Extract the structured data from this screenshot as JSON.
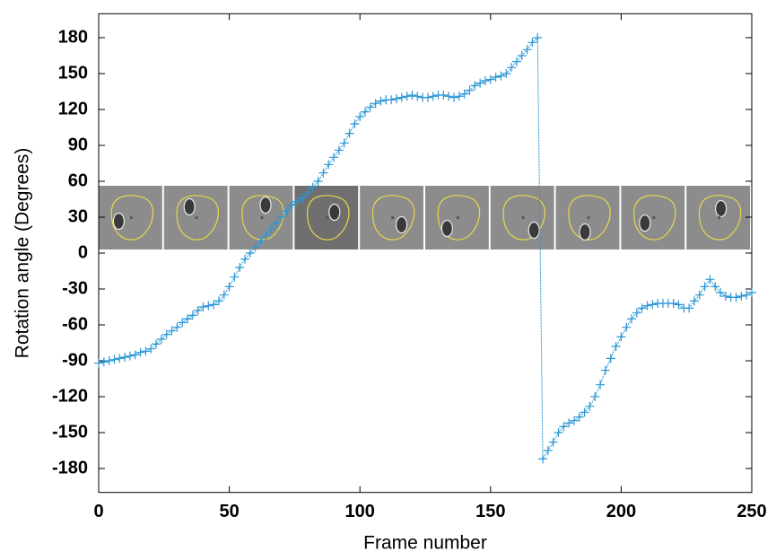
{
  "chart_data": {
    "type": "line",
    "xlabel": "Frame number",
    "ylabel": "Rotation angle (Degrees)",
    "color": "#2b96d6",
    "marker": "+",
    "xlim": [
      0,
      250
    ],
    "xticks": [
      0,
      50,
      100,
      150,
      200,
      250
    ],
    "ylim": [
      -200,
      200
    ],
    "yticks": [
      -180,
      -150,
      -120,
      -90,
      -60,
      -30,
      0,
      30,
      60,
      90,
      120,
      150,
      180
    ],
    "x": [
      0,
      2,
      4,
      6,
      8,
      10,
      12,
      14,
      16,
      18,
      20,
      22,
      24,
      26,
      28,
      30,
      32,
      34,
      36,
      38,
      40,
      42,
      44,
      46,
      48,
      50,
      52,
      54,
      56,
      58,
      60,
      62,
      64,
      66,
      68,
      70,
      72,
      74,
      76,
      78,
      80,
      82,
      84,
      86,
      88,
      90,
      92,
      94,
      96,
      98,
      100,
      102,
      104,
      106,
      108,
      110,
      112,
      114,
      116,
      118,
      120,
      122,
      124,
      126,
      128,
      130,
      132,
      134,
      136,
      138,
      140,
      142,
      144,
      146,
      148,
      150,
      152,
      154,
      156,
      158,
      160,
      162,
      164,
      166,
      168,
      170,
      172,
      174,
      176,
      178,
      180,
      182,
      184,
      186,
      188,
      190,
      192,
      194,
      196,
      198,
      200,
      202,
      204,
      206,
      208,
      210,
      212,
      214,
      216,
      218,
      220,
      222,
      224,
      226,
      228,
      230,
      232,
      234,
      236,
      238,
      240,
      242,
      244,
      246,
      248,
      250
    ],
    "values": [
      -92,
      -91,
      -90,
      -89,
      -88,
      -87,
      -86,
      -85,
      -83,
      -82,
      -80,
      -76,
      -72,
      -68,
      -65,
      -62,
      -58,
      -55,
      -52,
      -48,
      -45,
      -44,
      -43,
      -40,
      -35,
      -28,
      -20,
      -12,
      -5,
      0,
      5,
      10,
      15,
      20,
      25,
      30,
      35,
      40,
      43,
      46,
      50,
      55,
      60,
      67,
      74,
      80,
      86,
      92,
      100,
      108,
      114,
      118,
      122,
      125,
      127,
      128,
      128,
      129,
      130,
      131,
      132,
      131,
      130,
      130,
      131,
      132,
      132,
      131,
      130,
      131,
      133,
      136,
      140,
      142,
      144,
      145,
      147,
      148,
      150,
      155,
      160,
      165,
      170,
      176,
      180,
      -172,
      -165,
      -158,
      -150,
      -145,
      -142,
      -140,
      -137,
      -133,
      -128,
      -120,
      -110,
      -98,
      -88,
      -78,
      -70,
      -62,
      -55,
      -50,
      -46,
      -44,
      -43,
      -42,
      -42,
      -42,
      -42,
      -43,
      -46,
      -46,
      -40,
      -35,
      -28,
      -22,
      -28,
      -33,
      -36,
      -37,
      -37,
      -36,
      -35,
      -33
    ]
  }
}
